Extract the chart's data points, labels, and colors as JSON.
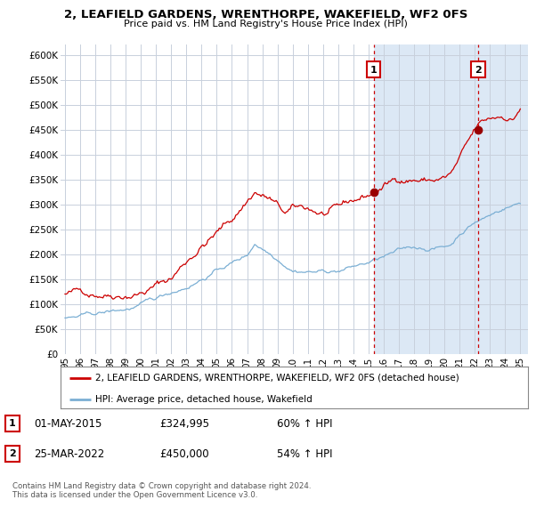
{
  "title": "2, LEAFIELD GARDENS, WRENTHORPE, WAKEFIELD, WF2 0FS",
  "subtitle": "Price paid vs. HM Land Registry's House Price Index (HPI)",
  "ylabel_ticks": [
    "£0",
    "£50K",
    "£100K",
    "£150K",
    "£200K",
    "£250K",
    "£300K",
    "£350K",
    "£400K",
    "£450K",
    "£500K",
    "£550K",
    "£600K"
  ],
  "ytick_vals": [
    0,
    50000,
    100000,
    150000,
    200000,
    250000,
    300000,
    350000,
    400000,
    450000,
    500000,
    550000,
    600000
  ],
  "xlim_start": 1995.0,
  "xlim_end": 2025.5,
  "ylim": [
    0,
    620000
  ],
  "plot_bg_color": "#dce8f5",
  "plot_bg_left_color": "#ffffff",
  "red_line_color": "#cc0000",
  "blue_line_color": "#7bafd4",
  "sale1_year": 2015.33,
  "sale1_price": 324995,
  "sale2_year": 2022.22,
  "sale2_price": 450000,
  "legend_label_red": "2, LEAFIELD GARDENS, WRENTHORPE, WAKEFIELD, WF2 0FS (detached house)",
  "legend_label_blue": "HPI: Average price, detached house, Wakefield",
  "table_rows": [
    {
      "num": "1",
      "date": "01-MAY-2015",
      "price": "£324,995",
      "hpi": "60% ↑ HPI"
    },
    {
      "num": "2",
      "date": "25-MAR-2022",
      "price": "£450,000",
      "hpi": "54% ↑ HPI"
    }
  ],
  "footer": "Contains HM Land Registry data © Crown copyright and database right 2024.\nThis data is licensed under the Open Government Licence v3.0.",
  "xtick_labels": [
    "95",
    "96",
    "97",
    "98",
    "99",
    "00",
    "01",
    "02",
    "03",
    "04",
    "05",
    "06",
    "07",
    "08",
    "09",
    "10",
    "11",
    "12",
    "13",
    "14",
    "15",
    "16",
    "17",
    "18",
    "19",
    "20",
    "21",
    "22",
    "23",
    "24",
    "25"
  ],
  "xtick_years": [
    1995,
    1996,
    1997,
    1998,
    1999,
    2000,
    2001,
    2002,
    2003,
    2004,
    2005,
    2006,
    2007,
    2008,
    2009,
    2010,
    2011,
    2012,
    2013,
    2014,
    2015,
    2016,
    2017,
    2018,
    2019,
    2020,
    2021,
    2022,
    2023,
    2024,
    2025
  ],
  "grid_color": "#c8d0dc",
  "white_bg_end": 2015.33
}
